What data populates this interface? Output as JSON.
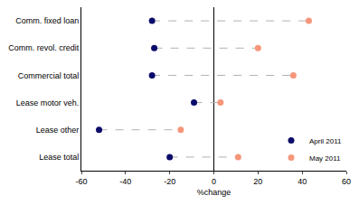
{
  "chart_data": {
    "type": "dot",
    "orientation": "horizontal",
    "categories": [
      "Comm. fixed loan",
      "Comm. revol. credit",
      "Commercial total",
      "Lease motor veh.",
      "Lease other",
      "Lease total"
    ],
    "series": [
      {
        "name": "April 2011",
        "color": "#0b0b6b",
        "values": [
          -28,
          -27,
          -28,
          -9,
          -52,
          -20
        ]
      },
      {
        "name": "May 2011",
        "color": "#f7967a",
        "values": [
          43,
          20,
          36,
          3,
          -15,
          11
        ]
      }
    ],
    "xlabel": "%change",
    "xlim": [
      -60,
      60
    ],
    "xticks": [
      -60,
      -40,
      -20,
      0,
      20,
      40,
      60
    ],
    "marker": "circle",
    "line_style": "dashed",
    "legend": "lower right",
    "grid": false
  }
}
